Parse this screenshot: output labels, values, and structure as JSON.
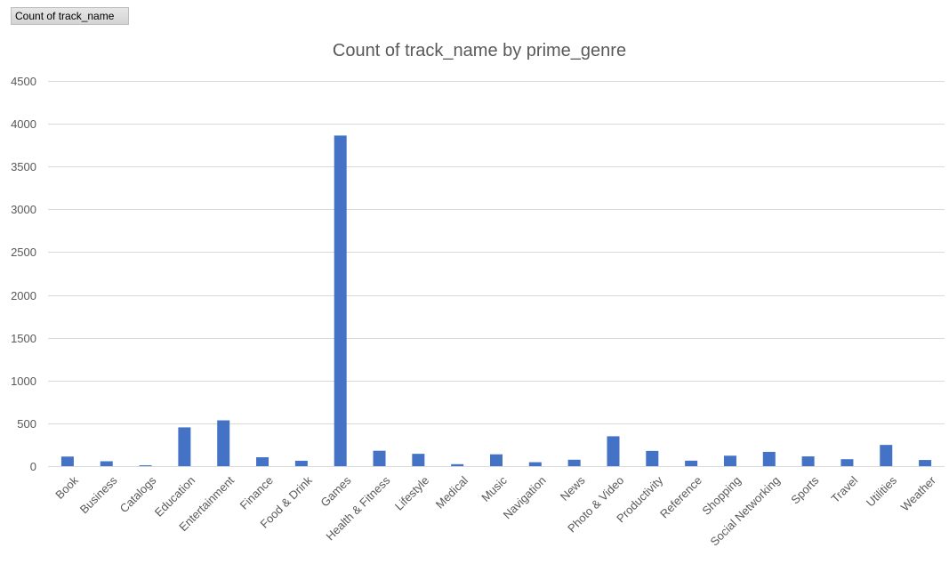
{
  "field_button": {
    "label": "Count  of track_name"
  },
  "chart_data": {
    "type": "bar",
    "title": "Count of track_name by prime_genre",
    "xlabel": "",
    "ylabel": "",
    "ylim": [
      0,
      4500
    ],
    "yticks": [
      0,
      500,
      1000,
      1500,
      2000,
      2500,
      3000,
      3500,
      4000,
      4500
    ],
    "grid": true,
    "bar_color": "#4472c4",
    "categories": [
      "Book",
      "Business",
      "Catalogs",
      "Education",
      "Entertainment",
      "Finance",
      "Food & Drink",
      "Games",
      "Health & Fitness",
      "Lifestyle",
      "Medical",
      "Music",
      "Navigation",
      "News",
      "Photo & Video",
      "Productivity",
      "Reference",
      "Shopping",
      "Social Networking",
      "Sports",
      "Travel",
      "Utilities",
      "Weather"
    ],
    "values": [
      112,
      57,
      10,
      453,
      535,
      104,
      63,
      3862,
      180,
      144,
      23,
      138,
      46,
      75,
      349,
      178,
      64,
      122,
      167,
      114,
      81,
      248,
      72
    ]
  }
}
